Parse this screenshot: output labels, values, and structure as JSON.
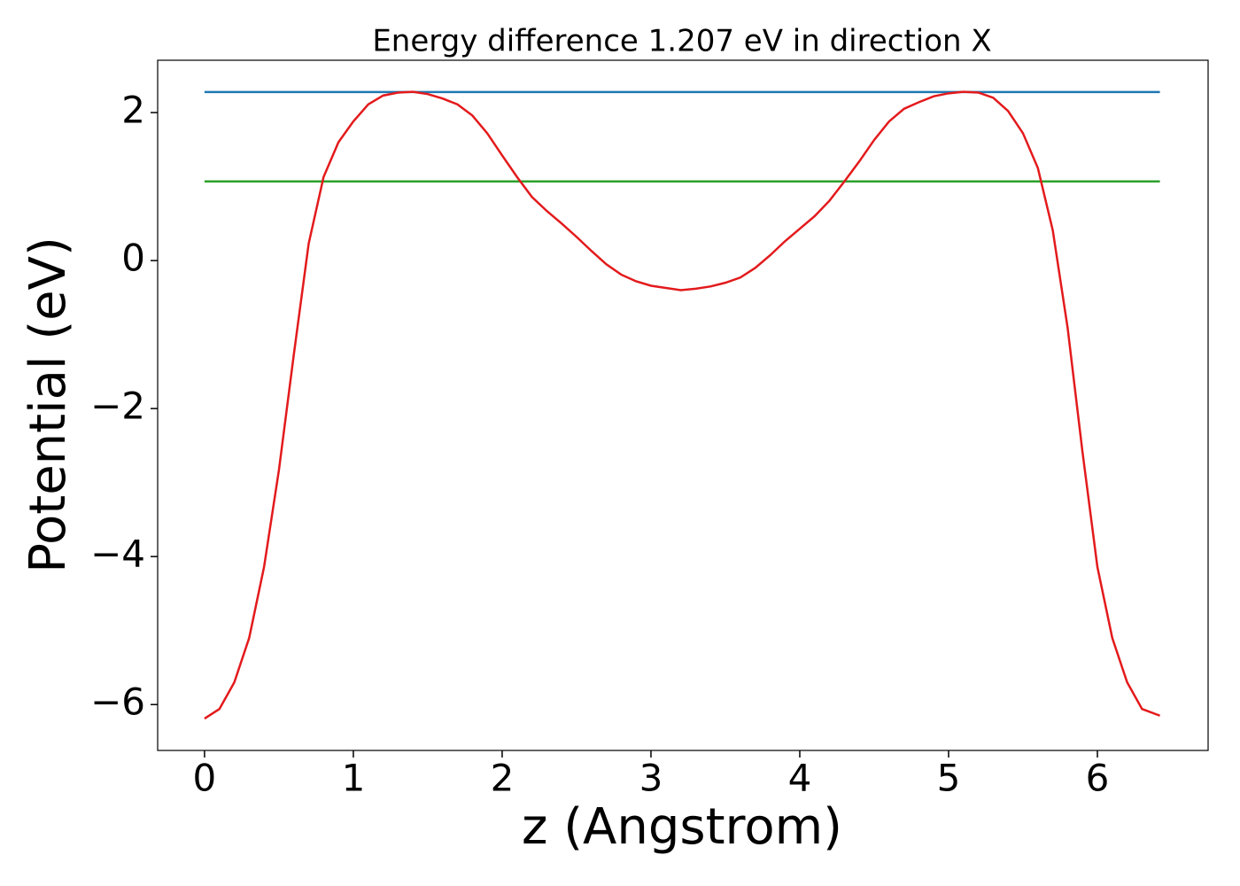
{
  "chart_data": {
    "type": "line",
    "title": "Energy difference 1.207 eV in direction X",
    "xlabel": "z (Angstrom)",
    "ylabel": "Potential (eV)",
    "xlim": [
      -0.315,
      6.744
    ],
    "ylim": [
      -6.62,
      2.707
    ],
    "xticks": [
      0,
      1,
      2,
      3,
      4,
      5,
      6
    ],
    "yticks": [
      {
        "value": -6,
        "label": "−6"
      },
      {
        "value": -4,
        "label": "−4"
      },
      {
        "value": -2,
        "label": "−2"
      },
      0,
      2
    ],
    "series": [
      {
        "color": "#1f77b4",
        "x": [
          0,
          6.42
        ],
        "values": [
          2.277,
          2.277
        ]
      },
      {
        "color": "#2ca02c",
        "x": [
          0,
          6.42
        ],
        "values": [
          1.07,
          1.07
        ]
      },
      {
        "color": "#e31a1c",
        "x": [
          0,
          0.1,
          0.2,
          0.3,
          0.4,
          0.5,
          0.6,
          0.7,
          0.8,
          0.9,
          1.0,
          1.1,
          1.2,
          1.3,
          1.4,
          1.5,
          1.6,
          1.7,
          1.8,
          1.9,
          2.0,
          2.1,
          2.2,
          2.3,
          2.4,
          2.5,
          2.6,
          2.7,
          2.8,
          2.9,
          3.0,
          3.1,
          3.2,
          3.3,
          3.4,
          3.5,
          3.6,
          3.7,
          3.8,
          3.9,
          4.0,
          4.1,
          4.2,
          4.3,
          4.4,
          4.5,
          4.6,
          4.7,
          4.8,
          4.9,
          5.0,
          5.1,
          5.2,
          5.3,
          5.4,
          5.5,
          5.6,
          5.7,
          5.8,
          5.9,
          6.0,
          6.1,
          6.2,
          6.3,
          6.42
        ],
        "values": [
          -6.19,
          -6.06,
          -5.7,
          -5.1,
          -4.14,
          -2.83,
          -1.27,
          0.23,
          1.13,
          1.6,
          1.88,
          2.11,
          2.23,
          2.27,
          2.28,
          2.25,
          2.19,
          2.11,
          1.96,
          1.72,
          1.42,
          1.13,
          0.86,
          0.67,
          0.5,
          0.32,
          0.13,
          -0.05,
          -0.19,
          -0.28,
          -0.34,
          -0.37,
          -0.4,
          -0.38,
          -0.35,
          -0.3,
          -0.23,
          -0.1,
          0.07,
          0.26,
          0.43,
          0.6,
          0.81,
          1.07,
          1.34,
          1.63,
          1.88,
          2.05,
          2.14,
          2.22,
          2.26,
          2.28,
          2.27,
          2.2,
          2.02,
          1.72,
          1.25,
          0.41,
          -0.91,
          -2.59,
          -4.14,
          -5.1,
          -5.7,
          -6.06,
          -6.15
        ]
      }
    ]
  }
}
